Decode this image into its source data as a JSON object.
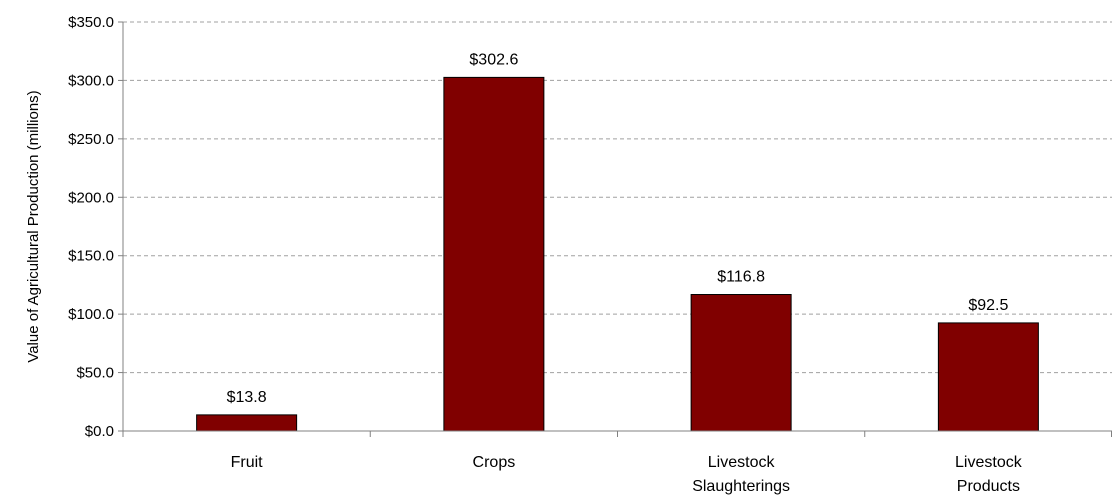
{
  "chart_data": {
    "type": "bar",
    "categories": [
      [
        "Fruit"
      ],
      [
        "Crops"
      ],
      [
        "Livestock",
        "Slaughterings"
      ],
      [
        "Livestock",
        "Products"
      ]
    ],
    "values": [
      13.8,
      302.6,
      116.8,
      92.5
    ],
    "data_labels": [
      "$13.8",
      "$302.6",
      "$116.8",
      "$92.5"
    ],
    "title": "",
    "xlabel": "",
    "ylabel": "Value of Agricultural Production (millions)",
    "ylim": [
      0,
      350
    ],
    "yticks": [
      0,
      50,
      100,
      150,
      200,
      250,
      300,
      350
    ],
    "ytick_labels": [
      "$0.0",
      "$50.0",
      "$100.0",
      "$150.0",
      "$200.0",
      "$250.0",
      "$300.0",
      "$350.0"
    ],
    "grid": true,
    "legend": "none",
    "colors": {
      "bar": "#800000",
      "bar_edge": "#000000",
      "grid": "#a0a0a0",
      "axis": "#808080"
    }
  }
}
